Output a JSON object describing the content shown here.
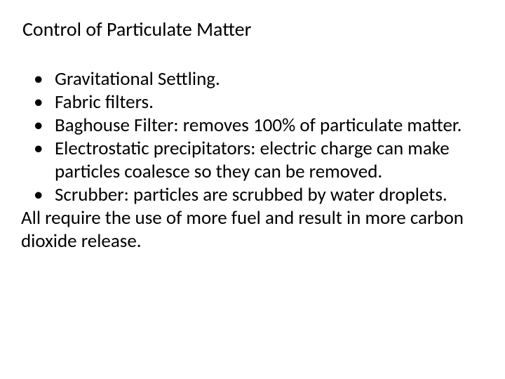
{
  "title": "Control of Particulate Matter",
  "bullets": [
    "Gravitational Settling.",
    "Fabric filters.",
    "Baghouse Filter: removes 100% of particulate matter.",
    "Electrostatic precipitators: electric charge can make particles coalesce so they can be removed.",
    "Scrubber: particles are scrubbed by water droplets."
  ],
  "closing": "All require the use of more fuel and result in more carbon dioxide release.",
  "colors": {
    "background": "#ffffff",
    "text": "#000000"
  },
  "typography": {
    "title_fontsize": 28,
    "body_fontsize": 27,
    "font_family": "Calibri"
  }
}
